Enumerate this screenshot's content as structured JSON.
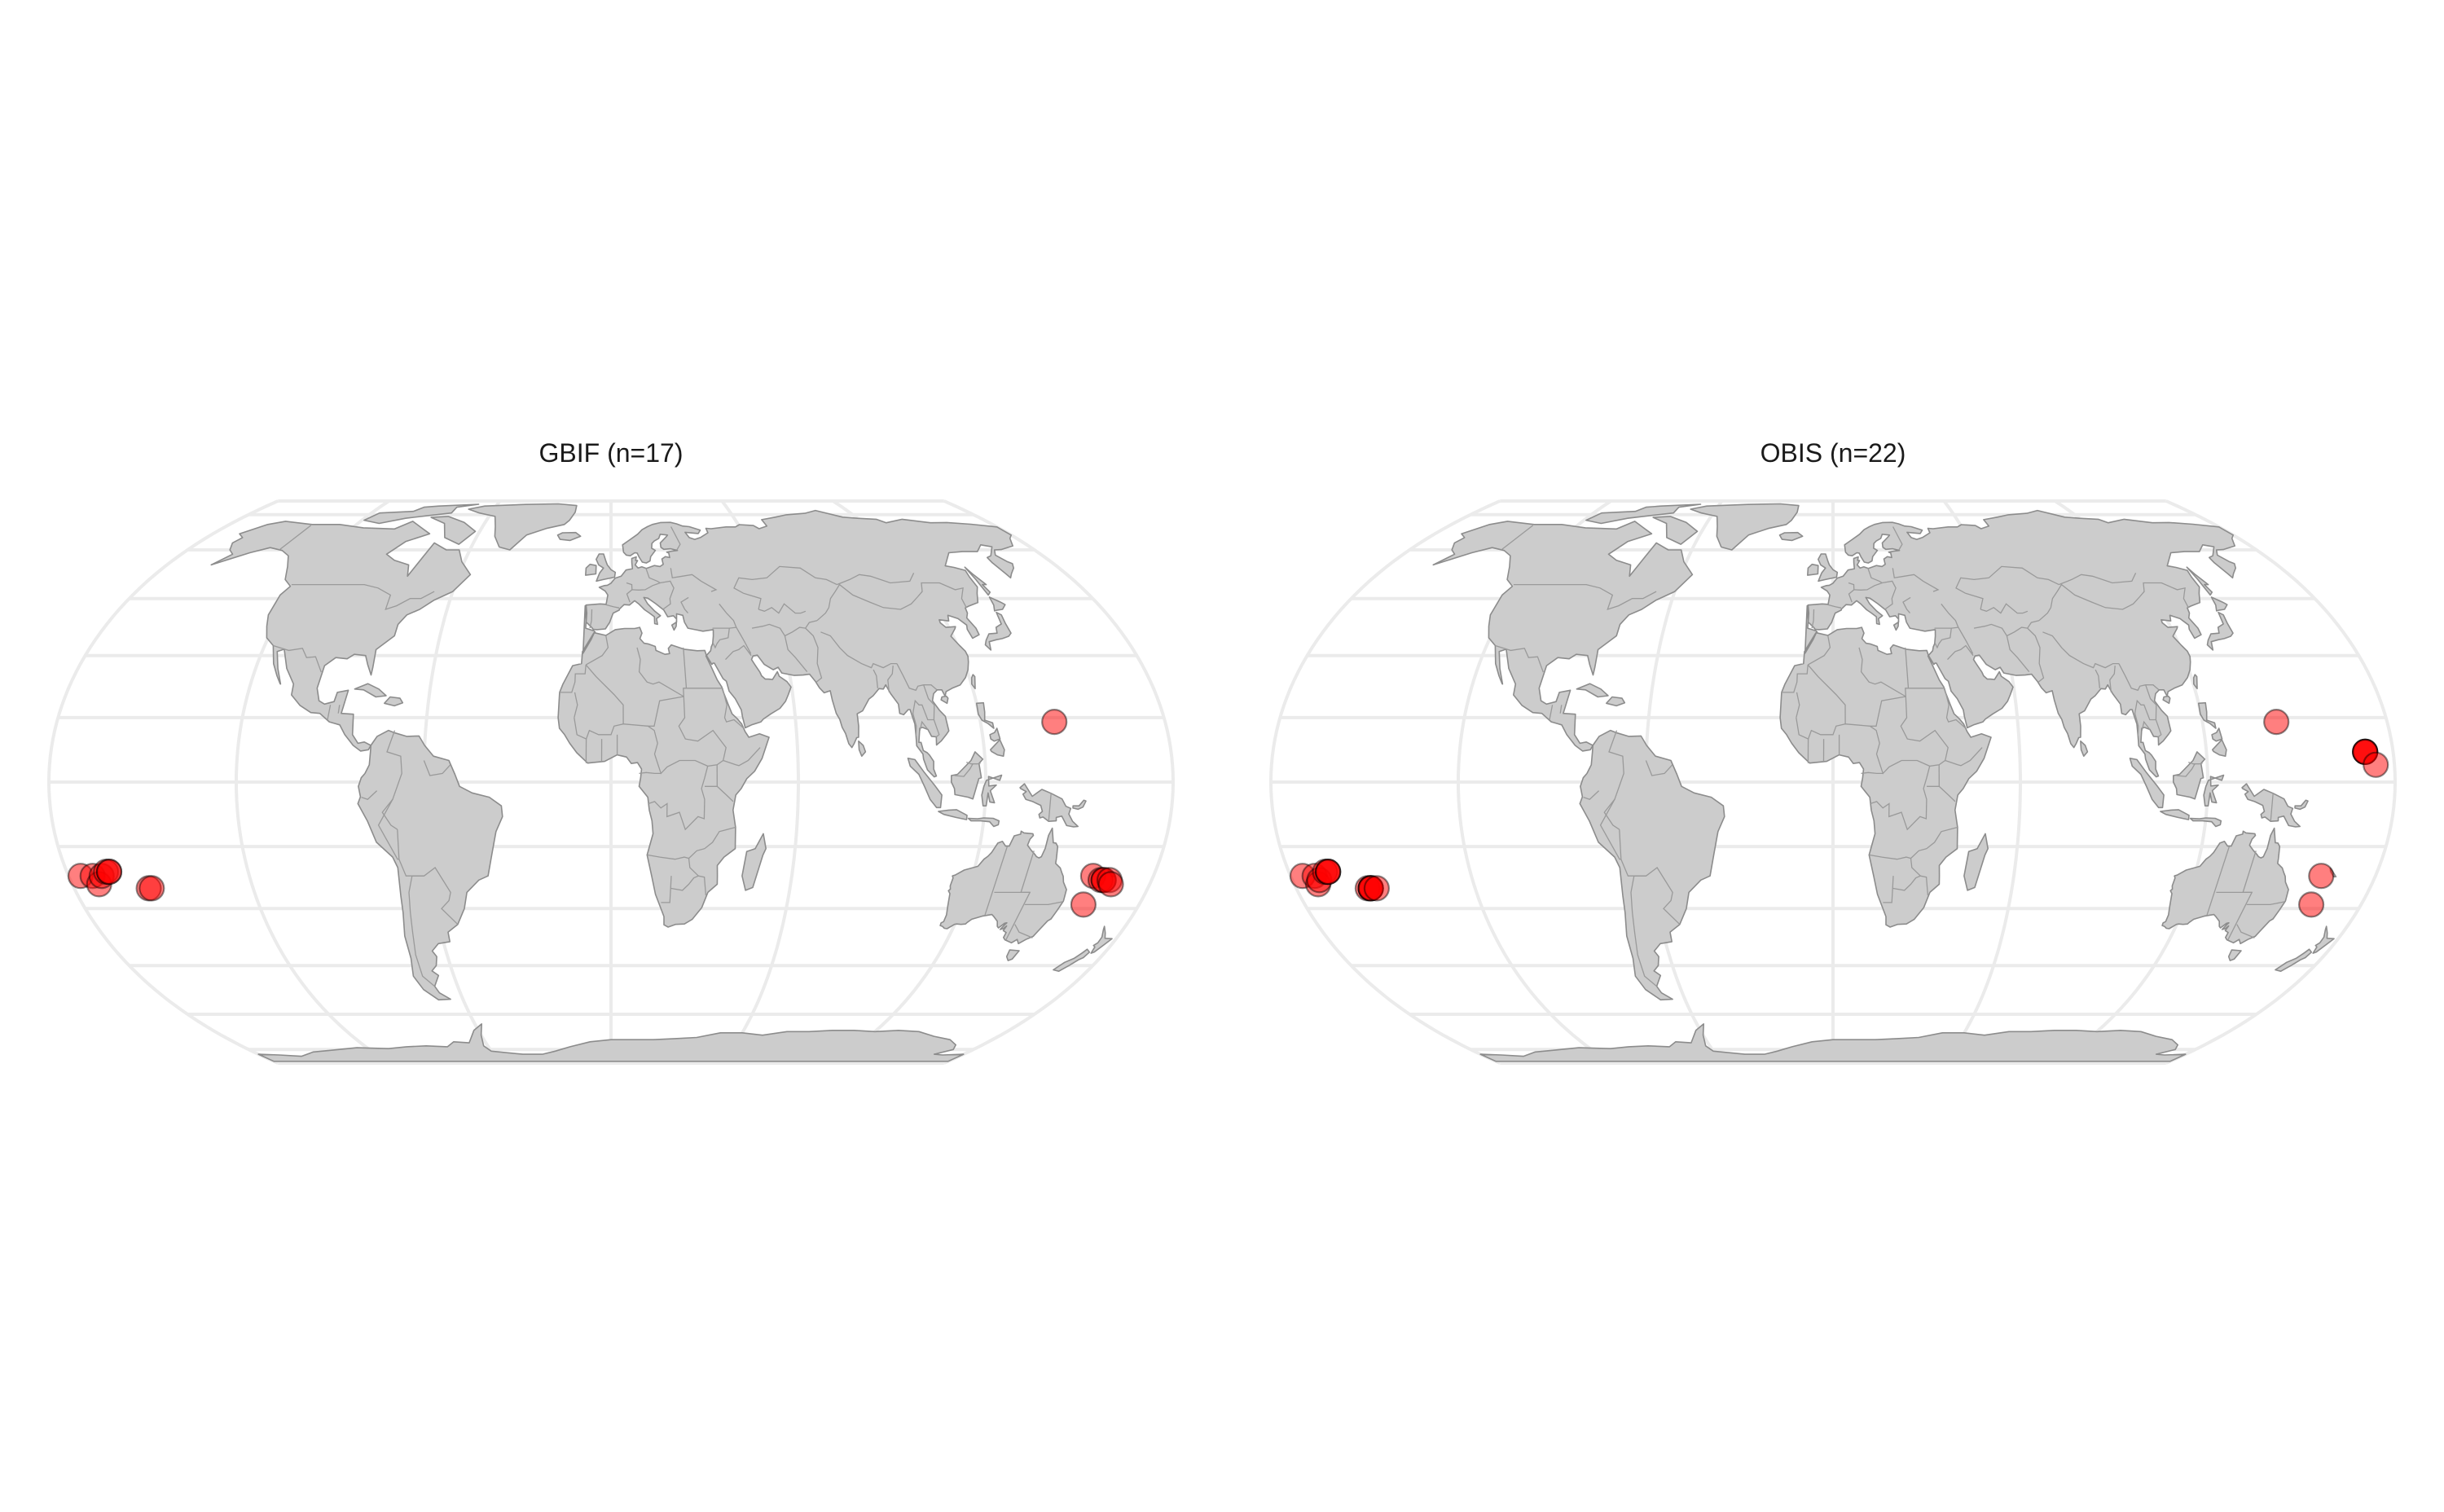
{
  "colors": {
    "background": "#ffffff",
    "land": "#cccccc",
    "land_outline": "#8c8c8c",
    "graticule": "#ebebeb",
    "point_fill": "#ff0000",
    "point_outline": "#000000"
  },
  "maps": [
    {
      "title": "GBIF (n=17)",
      "count": 17,
      "projection": "Equal Earth",
      "points": [
        {
          "lon": 144,
          "lat": 14
        },
        {
          "lon": -176,
          "lat": -22
        },
        {
          "lon": -172,
          "lat": -22
        },
        {
          "lon": -171,
          "lat": -24
        },
        {
          "lon": -169,
          "lat": -22
        },
        {
          "lon": -167,
          "lat": -21
        },
        {
          "lon": -166,
          "lat": -21
        },
        {
          "lon": -166,
          "lat": -21
        },
        {
          "lon": -155,
          "lat": -25
        },
        {
          "lon": -154,
          "lat": -25
        },
        {
          "lon": 160,
          "lat": -22
        },
        {
          "lon": 163,
          "lat": -23
        },
        {
          "lon": 164,
          "lat": -23
        },
        {
          "lon": 164,
          "lat": -23
        },
        {
          "lon": 166,
          "lat": -23
        },
        {
          "lon": 167,
          "lat": -24
        },
        {
          "lon": 161,
          "lat": -29
        }
      ]
    },
    {
      "title": "OBIS (n=22)",
      "count": 22,
      "projection": "Equal Earth",
      "points": [
        {
          "lon": 144,
          "lat": 14
        },
        {
          "lon": 171,
          "lat": 7
        },
        {
          "lon": 171,
          "lat": 7
        },
        {
          "lon": 171,
          "lat": 7
        },
        {
          "lon": 171,
          "lat": 7
        },
        {
          "lon": 174,
          "lat": 4
        },
        {
          "lon": -176,
          "lat": -22
        },
        {
          "lon": -172,
          "lat": -22
        },
        {
          "lon": -172,
          "lat": -24
        },
        {
          "lon": -171,
          "lat": -23
        },
        {
          "lon": -168,
          "lat": -21
        },
        {
          "lon": -167,
          "lat": -21
        },
        {
          "lon": -167,
          "lat": -21
        },
        {
          "lon": -167,
          "lat": -21
        },
        {
          "lon": -156,
          "lat": -25
        },
        {
          "lon": -155,
          "lat": -25
        },
        {
          "lon": -155,
          "lat": -25
        },
        {
          "lon": -155,
          "lat": -25
        },
        {
          "lon": -155,
          "lat": -25
        },
        {
          "lon": -153,
          "lat": -25
        },
        {
          "lon": 162,
          "lat": -22
        },
        {
          "lon": 163,
          "lat": -29
        }
      ]
    }
  ]
}
